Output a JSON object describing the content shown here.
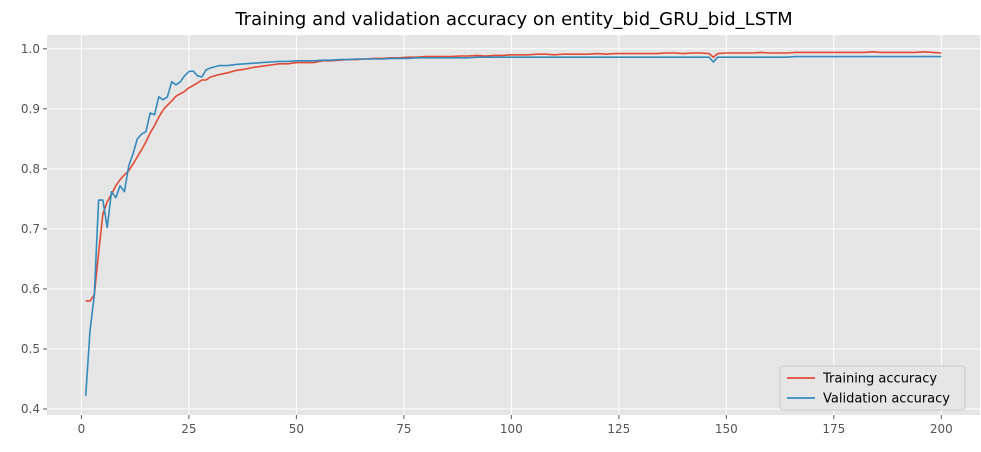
{
  "chart_data": {
    "type": "line",
    "title": "Training and validation accuracy on entity_bid_GRU_bid_LSTM",
    "xlabel": "",
    "ylabel": "",
    "xlim": [
      -8,
      209
    ],
    "ylim": [
      0.39,
      1.023
    ],
    "xticks": [
      0,
      25,
      50,
      75,
      100,
      125,
      150,
      175,
      200
    ],
    "yticks": [
      0.4,
      0.5,
      0.6,
      0.7,
      0.8,
      0.9,
      1.0
    ],
    "ytick_labels": [
      "0.4",
      "0.5",
      "0.6",
      "0.7",
      "0.8",
      "0.9",
      "1.0"
    ],
    "grid": true,
    "legend_position": "lower-right",
    "background_color": "#e5e5e5",
    "series": [
      {
        "name": "Training accuracy",
        "color": "#e24a33",
        "x": [
          1,
          2,
          3,
          4,
          5,
          6,
          7,
          8,
          9,
          10,
          11,
          12,
          13,
          14,
          15,
          16,
          17,
          18,
          19,
          20,
          21,
          22,
          23,
          24,
          25,
          26,
          27,
          28,
          29,
          30,
          32,
          34,
          36,
          38,
          40,
          42,
          44,
          46,
          48,
          50,
          52,
          54,
          56,
          58,
          60,
          62,
          64,
          66,
          68,
          70,
          72,
          74,
          76,
          78,
          80,
          82,
          84,
          86,
          88,
          90,
          92,
          94,
          96,
          98,
          100,
          102,
          104,
          106,
          108,
          110,
          112,
          114,
          116,
          118,
          120,
          122,
          124,
          126,
          128,
          130,
          132,
          134,
          136,
          138,
          140,
          142,
          144,
          146,
          147,
          148,
          150,
          152,
          154,
          156,
          158,
          160,
          162,
          164,
          166,
          168,
          170,
          172,
          174,
          176,
          178,
          180,
          182,
          184,
          186,
          188,
          190,
          192,
          194,
          196,
          198,
          200
        ],
        "values": [
          0.58,
          0.58,
          0.59,
          0.66,
          0.725,
          0.745,
          0.758,
          0.772,
          0.782,
          0.79,
          0.797,
          0.808,
          0.82,
          0.832,
          0.845,
          0.86,
          0.872,
          0.886,
          0.898,
          0.906,
          0.913,
          0.921,
          0.925,
          0.929,
          0.935,
          0.939,
          0.943,
          0.948,
          0.948,
          0.953,
          0.957,
          0.96,
          0.964,
          0.966,
          0.969,
          0.971,
          0.973,
          0.975,
          0.975,
          0.977,
          0.977,
          0.977,
          0.98,
          0.98,
          0.981,
          0.982,
          0.982,
          0.983,
          0.984,
          0.984,
          0.985,
          0.985,
          0.986,
          0.986,
          0.987,
          0.987,
          0.987,
          0.987,
          0.988,
          0.988,
          0.989,
          0.988,
          0.989,
          0.989,
          0.99,
          0.99,
          0.99,
          0.991,
          0.991,
          0.99,
          0.991,
          0.991,
          0.991,
          0.991,
          0.992,
          0.991,
          0.992,
          0.992,
          0.992,
          0.992,
          0.992,
          0.992,
          0.993,
          0.993,
          0.992,
          0.993,
          0.993,
          0.992,
          0.986,
          0.992,
          0.993,
          0.993,
          0.993,
          0.993,
          0.994,
          0.993,
          0.993,
          0.993,
          0.994,
          0.994,
          0.994,
          0.994,
          0.994,
          0.994,
          0.994,
          0.994,
          0.994,
          0.995,
          0.994,
          0.994,
          0.994,
          0.994,
          0.994,
          0.995,
          0.994,
          0.993
        ]
      },
      {
        "name": "Validation accuracy",
        "color": "#348abd",
        "x": [
          1,
          2,
          3,
          4,
          5,
          6,
          7,
          8,
          9,
          10,
          11,
          12,
          13,
          14,
          15,
          16,
          17,
          18,
          19,
          20,
          21,
          22,
          23,
          24,
          25,
          26,
          27,
          28,
          29,
          30,
          32,
          34,
          36,
          38,
          40,
          42,
          44,
          46,
          48,
          50,
          52,
          54,
          56,
          58,
          60,
          62,
          64,
          66,
          68,
          70,
          72,
          74,
          76,
          78,
          80,
          82,
          84,
          86,
          88,
          90,
          92,
          94,
          96,
          98,
          100,
          102,
          104,
          106,
          108,
          110,
          112,
          114,
          116,
          118,
          120,
          122,
          124,
          126,
          128,
          130,
          132,
          134,
          136,
          138,
          140,
          142,
          144,
          146,
          147,
          148,
          150,
          152,
          154,
          156,
          158,
          160,
          162,
          164,
          166,
          168,
          170,
          172,
          174,
          176,
          178,
          180,
          182,
          184,
          186,
          188,
          190,
          192,
          194,
          196,
          198,
          200
        ],
        "values": [
          0.422,
          0.53,
          0.59,
          0.748,
          0.748,
          0.702,
          0.762,
          0.752,
          0.772,
          0.762,
          0.805,
          0.825,
          0.85,
          0.858,
          0.862,
          0.893,
          0.89,
          0.92,
          0.915,
          0.92,
          0.945,
          0.94,
          0.945,
          0.955,
          0.962,
          0.963,
          0.955,
          0.953,
          0.965,
          0.968,
          0.972,
          0.972,
          0.974,
          0.975,
          0.976,
          0.977,
          0.978,
          0.979,
          0.979,
          0.98,
          0.98,
          0.98,
          0.981,
          0.981,
          0.982,
          0.982,
          0.983,
          0.983,
          0.983,
          0.983,
          0.984,
          0.984,
          0.984,
          0.985,
          0.985,
          0.985,
          0.985,
          0.985,
          0.985,
          0.985,
          0.986,
          0.986,
          0.986,
          0.986,
          0.986,
          0.986,
          0.986,
          0.986,
          0.986,
          0.986,
          0.986,
          0.986,
          0.986,
          0.986,
          0.986,
          0.986,
          0.986,
          0.986,
          0.986,
          0.986,
          0.986,
          0.986,
          0.986,
          0.986,
          0.986,
          0.986,
          0.986,
          0.986,
          0.978,
          0.986,
          0.986,
          0.986,
          0.986,
          0.986,
          0.986,
          0.986,
          0.986,
          0.986,
          0.987,
          0.987,
          0.987,
          0.987,
          0.987,
          0.987,
          0.987,
          0.987,
          0.987,
          0.987,
          0.987,
          0.987,
          0.987,
          0.987,
          0.987,
          0.987,
          0.987,
          0.987
        ]
      }
    ]
  }
}
